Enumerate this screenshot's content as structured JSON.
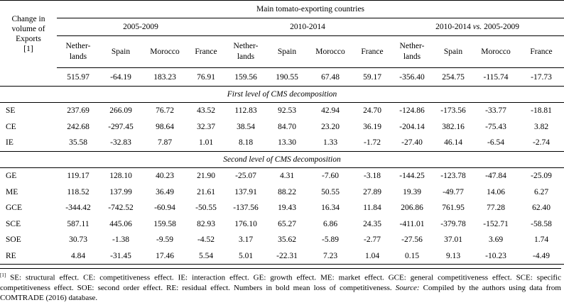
{
  "header": {
    "title": "Main tomato-exporting countries",
    "stub": [
      "Change in",
      "volume of",
      "Exports",
      "[1]"
    ],
    "periods": [
      "2005-2009",
      "2010-2014",
      "2010-2014 vs. 2005-2009"
    ],
    "period3_parts": [
      "2010-2014 ",
      "vs.",
      " 2005-2009"
    ],
    "countries": [
      [
        "Nether-",
        "lands"
      ],
      [
        "Spain"
      ],
      [
        "Morocco"
      ],
      [
        "France"
      ],
      [
        "Nether-",
        "lands"
      ],
      [
        "Spain"
      ],
      [
        "Morocco"
      ],
      [
        "France"
      ],
      [
        "Nether-",
        "lands"
      ],
      [
        "Spain"
      ],
      [
        "Morocco"
      ],
      [
        "France"
      ]
    ]
  },
  "totals": [
    "515.97",
    "-64.19",
    "183.23",
    "76.91",
    "159.56",
    "190.55",
    "67.48",
    "59.17",
    "-356.40",
    "254.75",
    "-115.74",
    "-17.73"
  ],
  "totals_bold": [
    false,
    true,
    false,
    false,
    false,
    false,
    false,
    false,
    true,
    false,
    true,
    true
  ],
  "sections": [
    {
      "title": "First level of CMS decomposition",
      "rows": [
        {
          "label": "SE",
          "values": [
            "237.69",
            "266.09",
            "76.72",
            "43.52",
            "112.83",
            "92.53",
            "42.94",
            "24.70",
            "-124.86",
            "-173.56",
            "-33.77",
            "-18.81"
          ],
          "bold": [
            false,
            false,
            false,
            false,
            false,
            false,
            false,
            false,
            true,
            true,
            true,
            true
          ]
        },
        {
          "label": "CE",
          "values": [
            "242.68",
            "-297.45",
            "98.64",
            "32.37",
            "38.54",
            "84.70",
            "23.20",
            "36.19",
            "-204.14",
            "382.16",
            "-75.43",
            "3.82"
          ],
          "bold": [
            false,
            true,
            false,
            false,
            false,
            false,
            false,
            false,
            true,
            false,
            true,
            false
          ]
        },
        {
          "label": "IE",
          "values": [
            "35.58",
            "-32.83",
            "7.87",
            "1.01",
            "8.18",
            "13.30",
            "1.33",
            "-1.72",
            "-27.40",
            "46.14",
            "-6.54",
            "-2.74"
          ],
          "bold": [
            false,
            true,
            false,
            false,
            false,
            false,
            false,
            true,
            true,
            false,
            true,
            true
          ]
        }
      ]
    },
    {
      "title": "Second level of CMS decomposition",
      "rows": [
        {
          "label": "GE",
          "values": [
            "119.17",
            "128.10",
            "40.23",
            "21.90",
            "-25.07",
            "4.31",
            "-7.60",
            "-3.18",
            "-144.25",
            "-123.78",
            "-47.84",
            "-25.09"
          ],
          "bold": [
            false,
            false,
            false,
            false,
            true,
            false,
            true,
            true,
            true,
            true,
            true,
            true
          ]
        },
        {
          "label": "ME",
          "values": [
            "118.52",
            "137.99",
            "36.49",
            "21.61",
            "137.91",
            "88.22",
            "50.55",
            "27.89",
            "19.39",
            "-49.77",
            "14.06",
            "6.27"
          ],
          "bold": [
            false,
            false,
            false,
            false,
            false,
            false,
            false,
            false,
            false,
            true,
            false,
            false
          ]
        },
        {
          "label": "GCE",
          "values": [
            "-344.42",
            "-742.52",
            "-60.94",
            "-50.55",
            "-137.56",
            "19.43",
            "16.34",
            "11.84",
            "206.86",
            "761.95",
            "77.28",
            "62.40"
          ],
          "bold": [
            true,
            true,
            true,
            true,
            true,
            false,
            false,
            false,
            false,
            false,
            false,
            false
          ]
        },
        {
          "label": "SCE",
          "values": [
            "587.11",
            "445.06",
            "159.58",
            "82.93",
            "176.10",
            "65.27",
            "6.86",
            "24.35",
            "-411.01",
            "-379.78",
            "-152.71",
            "-58.58"
          ],
          "bold": [
            false,
            false,
            false,
            false,
            false,
            false,
            false,
            false,
            true,
            true,
            true,
            true
          ]
        },
        {
          "label": "SOE",
          "values": [
            "30.73",
            "-1.38",
            "-9.59",
            "-4.52",
            "3.17",
            "35.62",
            "-5.89",
            "-2.77",
            "-27.56",
            "37.01",
            "3.69",
            "1.74"
          ],
          "bold": [
            false,
            true,
            true,
            true,
            false,
            false,
            true,
            true,
            true,
            false,
            false,
            false
          ]
        },
        {
          "label": "RE",
          "values": [
            "4.84",
            "-31.45",
            "17.46",
            "5.54",
            "5.01",
            "-22.31",
            "7.23",
            "1.04",
            "0.15",
            "9.13",
            "-10.23",
            "-4.49"
          ],
          "bold": [
            false,
            true,
            false,
            false,
            false,
            true,
            false,
            false,
            false,
            false,
            true,
            true
          ]
        }
      ]
    }
  ],
  "footnote": {
    "marker": "[1]",
    "text": " SE: structural effect. CE: competitiveness effect. IE: interaction effect. GE: growth effect. ME: market effect. GCE: general competitiveness effect. SCE: specific competitiveness effect. SOE: second order effect. RE: residual effect.  Numbers in bold mean loss of competitiveness. ",
    "source_label": "Source:",
    "source_text": " Compiled by the authors using data from COMTRADE (2016) database."
  }
}
